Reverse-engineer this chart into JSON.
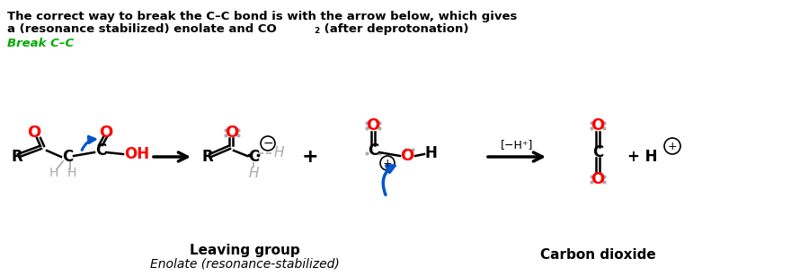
{
  "title_line1": "The correct way to break the C–C bond is with the arrow below, which gives",
  "title_line2a": "a (resonance stabilized) enolate and CO",
  "title_line2b": " (after deprotonation)",
  "title_line3": "Break C–C",
  "bg_color": "#ffffff",
  "black": "#000000",
  "red": "#ff0000",
  "blue": "#0055cc",
  "green": "#00aa00",
  "gray": "#aaaaaa",
  "leaving_group_label": "Leaving group",
  "enolate_label": "Enolate (resonance-stabilized)",
  "co2_label": "Carbon dioxide"
}
